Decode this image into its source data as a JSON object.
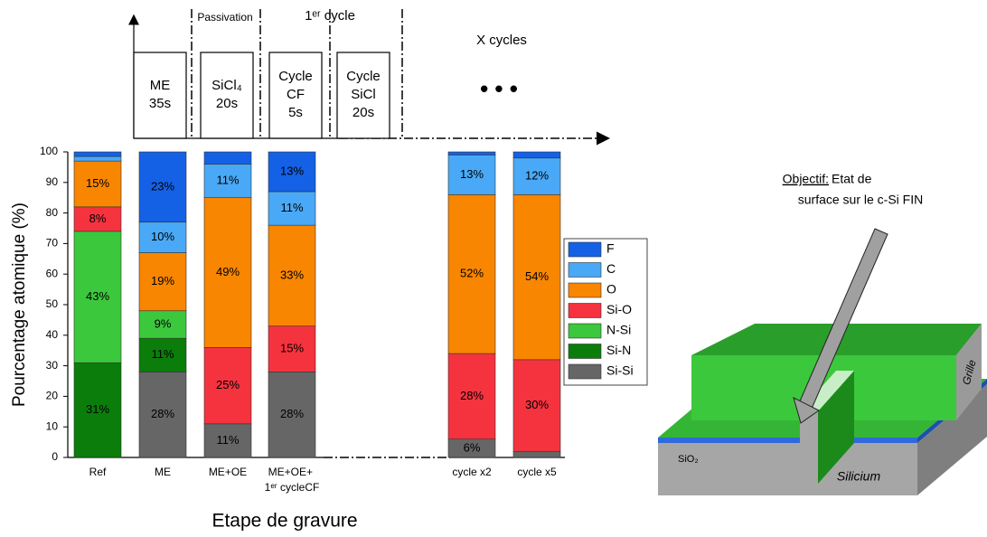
{
  "chart_data": {
    "type": "stacked_bar",
    "categories": [
      "Ref",
      "ME",
      "ME+OE",
      "ME+OE+ 1ᵉʳ cycleCF",
      "cycle x2",
      "cycle x5"
    ],
    "series": [
      {
        "name": "Si-Si",
        "color": "#666666",
        "label_color": "#ffffff",
        "values": [
          0,
          28,
          11,
          28,
          6,
          2
        ],
        "value_labels": [
          null,
          "28%",
          "11%",
          "28%",
          "6%",
          null
        ]
      },
      {
        "name": "Si-N",
        "color": "#0b7d0b",
        "label_color": "#ffffff",
        "values": [
          31,
          11,
          0,
          0,
          0,
          0
        ],
        "value_labels": [
          "31%",
          "11%",
          null,
          null,
          null,
          null
        ]
      },
      {
        "name": "N-Si",
        "color": "#3cc83c",
        "label_color": "#000000",
        "values": [
          43,
          9,
          0,
          0,
          0,
          0
        ],
        "value_labels": [
          "43%",
          "9%",
          null,
          null,
          null,
          null
        ]
      },
      {
        "name": "Si-O",
        "color": "#f5333f",
        "label_color": "#ffffff",
        "values": [
          8,
          0,
          25,
          15,
          28,
          30
        ],
        "value_labels": [
          "8%",
          null,
          "25%",
          "15%",
          "28%",
          "30%"
        ]
      },
      {
        "name": "O",
        "color": "#f98600",
        "label_color": "#000000",
        "values": [
          15,
          19,
          49,
          33,
          52,
          54
        ],
        "value_labels": [
          "15%",
          "19%",
          "49%",
          "33%",
          "52%",
          "54%"
        ]
      },
      {
        "name": "C",
        "color": "#4aa9f6",
        "label_color": "#000000",
        "values": [
          1.5,
          10,
          11,
          11,
          13,
          12
        ],
        "value_labels": [
          null,
          "10%",
          "11%",
          "11%",
          "13%",
          "12%"
        ]
      },
      {
        "name": "F",
        "color": "#1461e6",
        "label_color": "#ffffff",
        "values": [
          1.5,
          23,
          4,
          13,
          1,
          2
        ],
        "value_labels": [
          null,
          "23%",
          null,
          "13%",
          null,
          null
        ]
      }
    ],
    "ylim": [
      0,
      100
    ],
    "yticks": [
      0,
      10,
      20,
      30,
      40,
      50,
      60,
      70,
      80,
      90,
      100
    ],
    "ylabel": "Pourcentage atomique (%)",
    "xlabel": "Etape de gravure",
    "legend": "right"
  },
  "process": {
    "phases": [
      "Passivation",
      "1ᵉʳ cycle",
      "X cycles"
    ],
    "steps": [
      [
        "ME",
        "35s"
      ],
      [
        "SiCl₄",
        "20s"
      ],
      [
        "Cycle",
        "CF",
        "5s"
      ],
      [
        "Cycle",
        "SiCl",
        "20s"
      ]
    ],
    "ellipsis": "• • •"
  },
  "illustration": {
    "objective_label": "Objectif:",
    "objective_text": [
      "Etat de",
      "surface sur le c-Si FIN"
    ],
    "labels": [
      "Grille",
      "SiO₂",
      "Silicium"
    ]
  }
}
